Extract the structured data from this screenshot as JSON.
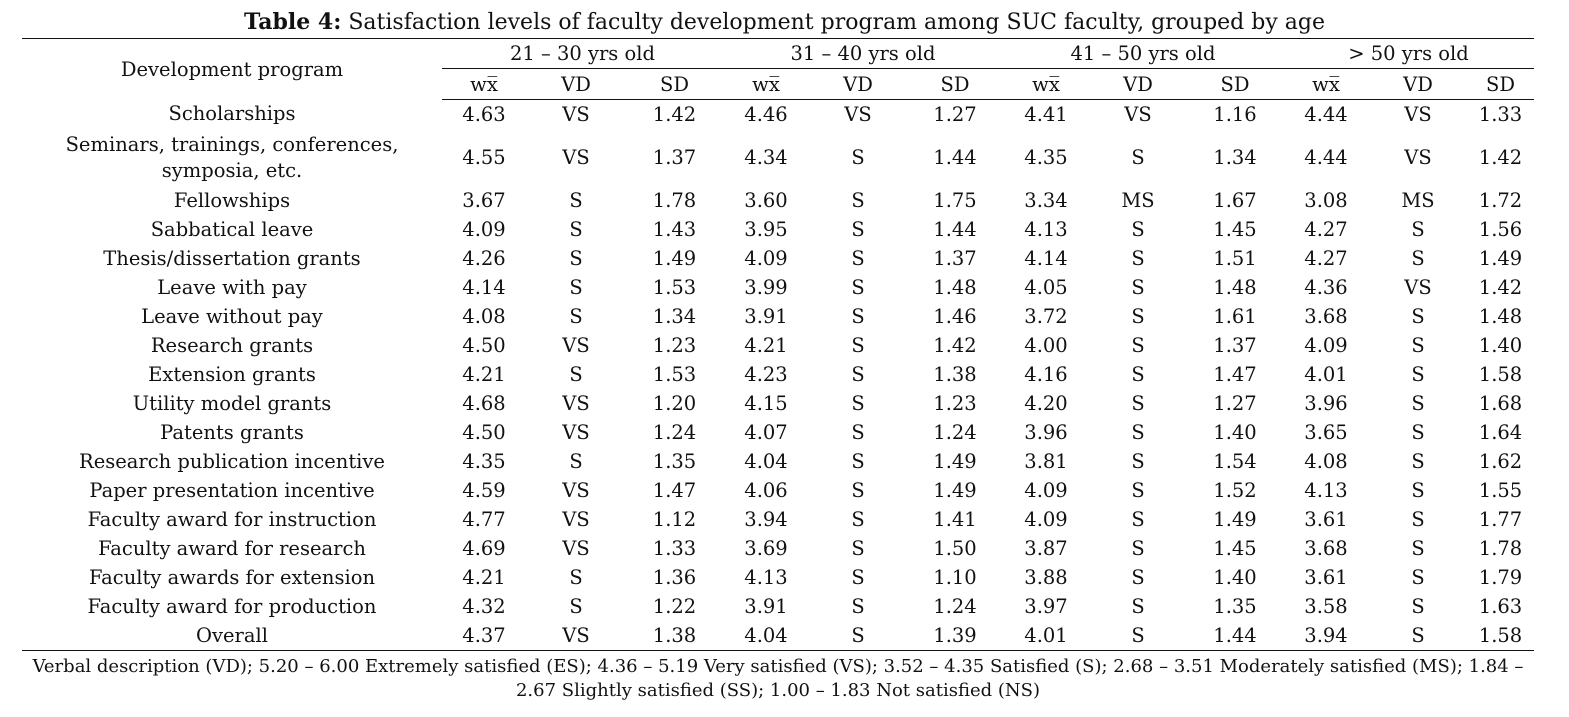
{
  "caption": {
    "label": "Table 4:",
    "text": " Satisfaction levels of faculty development program among SUC faculty, grouped by age"
  },
  "table": {
    "first_header": "Development program",
    "groups": [
      "21 – 30 yrs old",
      "31 – 40 yrs old",
      "41 – 50 yrs old",
      "> 50 yrs old"
    ],
    "subheaders": [
      "wx̅",
      "VD",
      "SD"
    ],
    "rows": [
      {
        "program": "Scholarships",
        "values": [
          "4.63",
          "VS",
          "1.42",
          "4.46",
          "VS",
          "1.27",
          "4.41",
          "VS",
          "1.16",
          "4.44",
          "VS",
          "1.33"
        ]
      },
      {
        "program": "Seminars, trainings, conferences, symposia, etc.",
        "values": [
          "4.55",
          "VS",
          "1.37",
          "4.34",
          "S",
          "1.44",
          "4.35",
          "S",
          "1.34",
          "4.44",
          "VS",
          "1.42"
        ]
      },
      {
        "program": "Fellowships",
        "values": [
          "3.67",
          "S",
          "1.78",
          "3.60",
          "S",
          "1.75",
          "3.34",
          "MS",
          "1.67",
          "3.08",
          "MS",
          "1.72"
        ]
      },
      {
        "program": "Sabbatical leave",
        "values": [
          "4.09",
          "S",
          "1.43",
          "3.95",
          "S",
          "1.44",
          "4.13",
          "S",
          "1.45",
          "4.27",
          "S",
          "1.56"
        ]
      },
      {
        "program": "Thesis/dissertation grants",
        "values": [
          "4.26",
          "S",
          "1.49",
          "4.09",
          "S",
          "1.37",
          "4.14",
          "S",
          "1.51",
          "4.27",
          "S",
          "1.49"
        ]
      },
      {
        "program": "Leave with pay",
        "values": [
          "4.14",
          "S",
          "1.53",
          "3.99",
          "S",
          "1.48",
          "4.05",
          "S",
          "1.48",
          "4.36",
          "VS",
          "1.42"
        ]
      },
      {
        "program": "Leave without pay",
        "values": [
          "4.08",
          "S",
          "1.34",
          "3.91",
          "S",
          "1.46",
          "3.72",
          "S",
          "1.61",
          "3.68",
          "S",
          "1.48"
        ]
      },
      {
        "program": "Research grants",
        "values": [
          "4.50",
          "VS",
          "1.23",
          "4.21",
          "S",
          "1.42",
          "4.00",
          "S",
          "1.37",
          "4.09",
          "S",
          "1.40"
        ]
      },
      {
        "program": "Extension grants",
        "values": [
          "4.21",
          "S",
          "1.53",
          "4.23",
          "S",
          "1.38",
          "4.16",
          "S",
          "1.47",
          "4.01",
          "S",
          "1.58"
        ]
      },
      {
        "program": "Utility model grants",
        "values": [
          "4.68",
          "VS",
          "1.20",
          "4.15",
          "S",
          "1.23",
          "4.20",
          "S",
          "1.27",
          "3.96",
          "S",
          "1.68"
        ]
      },
      {
        "program": "Patents grants",
        "values": [
          "4.50",
          "VS",
          "1.24",
          "4.07",
          "S",
          "1.24",
          "3.96",
          "S",
          "1.40",
          "3.65",
          "S",
          "1.64"
        ]
      },
      {
        "program": "Research publication incentive",
        "values": [
          "4.35",
          "S",
          "1.35",
          "4.04",
          "S",
          "1.49",
          "3.81",
          "S",
          "1.54",
          "4.08",
          "S",
          "1.62"
        ]
      },
      {
        "program": "Paper presentation incentive",
        "values": [
          "4.59",
          "VS",
          "1.47",
          "4.06",
          "S",
          "1.49",
          "4.09",
          "S",
          "1.52",
          "4.13",
          "S",
          "1.55"
        ]
      },
      {
        "program": "Faculty award for instruction",
        "values": [
          "4.77",
          "VS",
          "1.12",
          "3.94",
          "S",
          "1.41",
          "4.09",
          "S",
          "1.49",
          "3.61",
          "S",
          "1.77"
        ]
      },
      {
        "program": "Faculty award for research",
        "values": [
          "4.69",
          "VS",
          "1.33",
          "3.69",
          "S",
          "1.50",
          "3.87",
          "S",
          "1.45",
          "3.68",
          "S",
          "1.78"
        ]
      },
      {
        "program": "Faculty awards for extension",
        "values": [
          "4.21",
          "S",
          "1.36",
          "4.13",
          "S",
          "1.10",
          "3.88",
          "S",
          "1.40",
          "3.61",
          "S",
          "1.79"
        ]
      },
      {
        "program": "Faculty award for production",
        "values": [
          "4.32",
          "S",
          "1.22",
          "3.91",
          "S",
          "1.24",
          "3.97",
          "S",
          "1.35",
          "3.58",
          "S",
          "1.63"
        ]
      },
      {
        "program": "Overall",
        "values": [
          "4.37",
          "VS",
          "1.38",
          "4.04",
          "S",
          "1.39",
          "4.01",
          "S",
          "1.44",
          "3.94",
          "S",
          "1.58"
        ]
      }
    ]
  },
  "footnote": "Verbal description (VD); 5.20 – 6.00 Extremely satisfied (ES); 4.36 – 5.19 Very satisfied (VS); 3.52 – 4.35 Satisfied (S); 2.68 – 3.51 Moderately satisfied (MS); 1.84 – 2.67 Slightly satisfied (SS); 1.00 – 1.83 Not satisfied (NS)"
}
